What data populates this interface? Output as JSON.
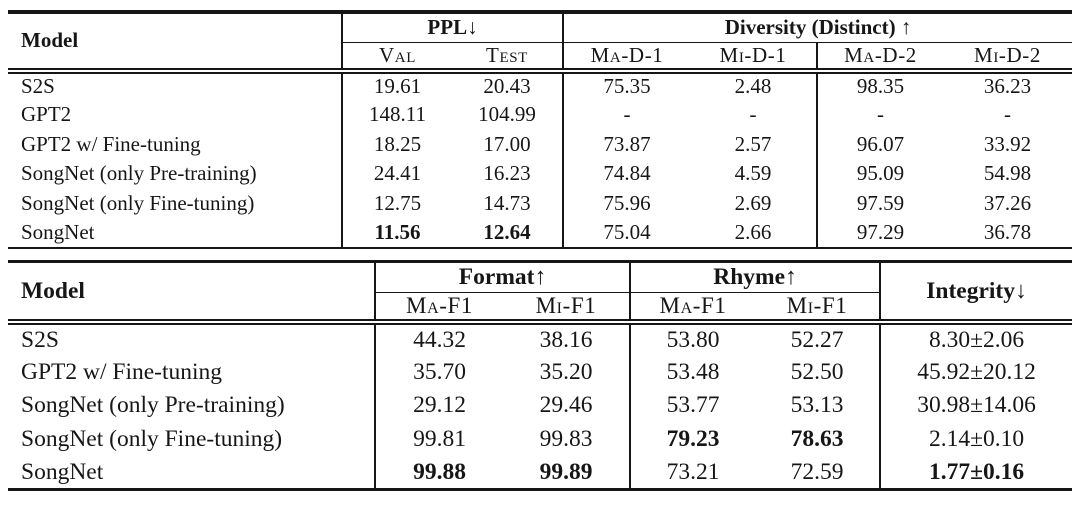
{
  "page": {
    "background_color": "#ffffff",
    "text_color": "#161616",
    "rule_color": "#161616"
  },
  "table1": {
    "model_header": "Model",
    "group1_label": "PPL↓",
    "group2_label": "Diversity (Distinct) ↑",
    "subheaders": [
      "Val",
      "Test",
      "Ma-D-1",
      "Mi-D-1",
      "Ma-D-2",
      "Mi-D-2"
    ],
    "rows": [
      {
        "model": "S2S",
        "values": [
          "19.61",
          "20.43",
          "75.35",
          "2.48",
          "98.35",
          "36.23"
        ],
        "bold": []
      },
      {
        "model": "GPT2",
        "values": [
          "148.11",
          "104.99",
          "-",
          "-",
          "-",
          "-"
        ],
        "bold": []
      },
      {
        "model": "GPT2 w/ Fine-tuning",
        "values": [
          "18.25",
          "17.00",
          "73.87",
          "2.57",
          "96.07",
          "33.92"
        ],
        "bold": []
      },
      {
        "model": "SongNet (only Pre-training)",
        "values": [
          "24.41",
          "16.23",
          "74.84",
          "4.59",
          "95.09",
          "54.98"
        ],
        "bold": []
      },
      {
        "model": "SongNet (only Fine-tuning)",
        "values": [
          "12.75",
          "14.73",
          "75.96",
          "2.69",
          "97.59",
          "37.26"
        ],
        "bold": []
      },
      {
        "model": "SongNet",
        "values": [
          "11.56",
          "12.64",
          "75.04",
          "2.66",
          "97.29",
          "36.78"
        ],
        "bold": [
          0,
          1
        ]
      }
    ]
  },
  "table2": {
    "model_header": "Model",
    "group1_label": "Format↑",
    "group2_label": "Rhyme↑",
    "group3_label": "Integrity↓",
    "subheaders": [
      "Ma-F1",
      "Mi-F1",
      "Ma-F1",
      "Mi-F1"
    ],
    "rows": [
      {
        "model": "S2S",
        "values": [
          "44.32",
          "38.16",
          "53.80",
          "52.27",
          "8.30±2.06"
        ],
        "bold": []
      },
      {
        "model": "GPT2 w/ Fine-tuning",
        "values": [
          "35.70",
          "35.20",
          "53.48",
          "52.50",
          "45.92±20.12"
        ],
        "bold": []
      },
      {
        "model": "SongNet (only Pre-training)",
        "values": [
          "29.12",
          "29.46",
          "53.77",
          "53.13",
          "30.98±14.06"
        ],
        "bold": []
      },
      {
        "model": "SongNet (only Fine-tuning)",
        "values": [
          "99.81",
          "99.83",
          "79.23",
          "78.63",
          "2.14±0.10"
        ],
        "bold": [
          2,
          3
        ]
      },
      {
        "model": "SongNet",
        "values": [
          "99.88",
          "99.89",
          "73.21",
          "72.59",
          "1.77±0.16"
        ],
        "bold": [
          0,
          1,
          4
        ]
      }
    ]
  }
}
